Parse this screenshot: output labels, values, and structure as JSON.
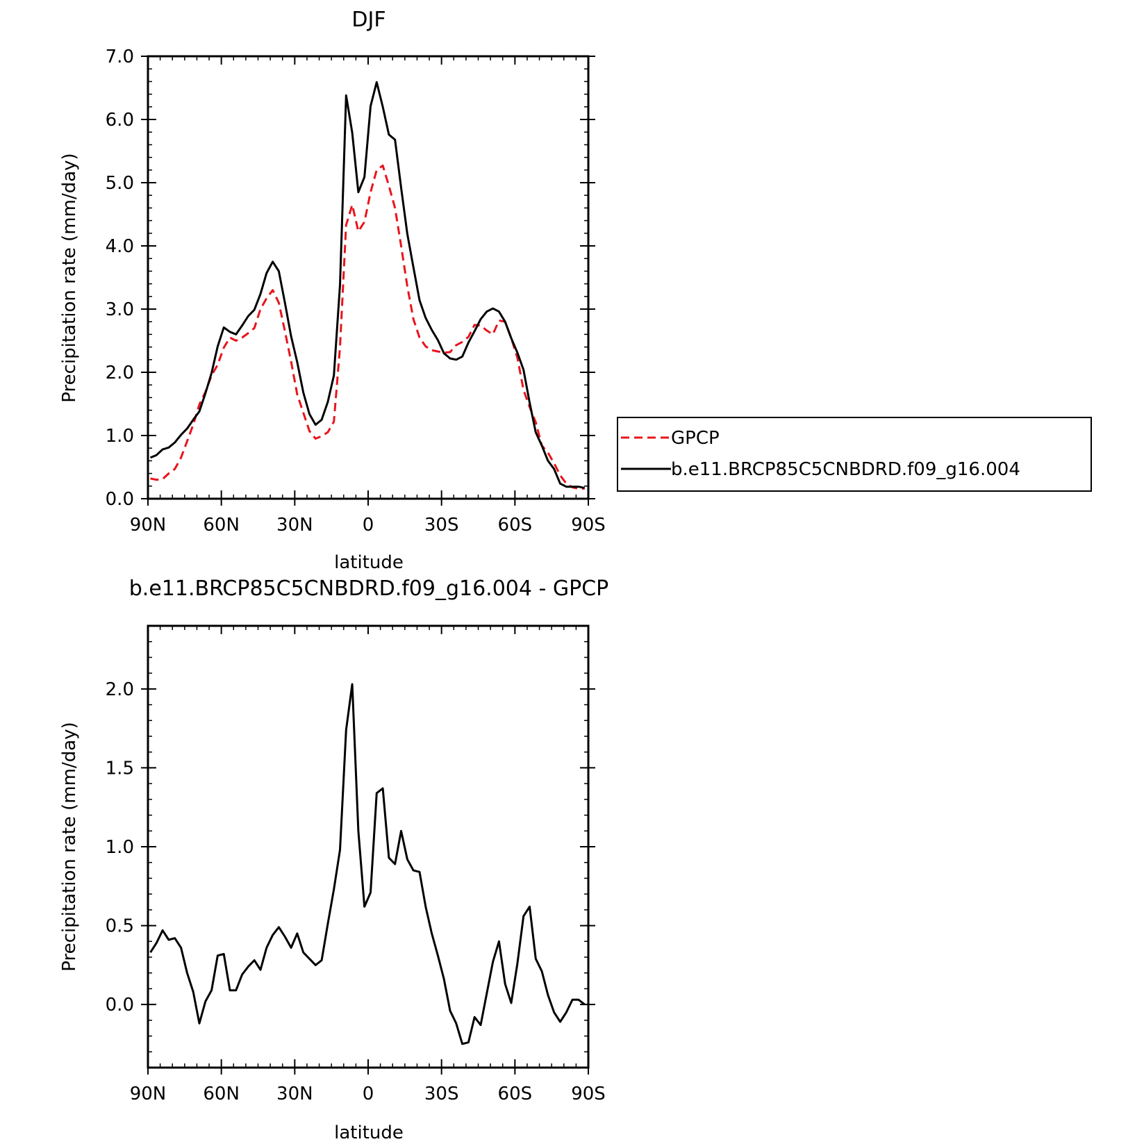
{
  "chart_data": [
    {
      "type": "line",
      "title": "DJF",
      "xlabel": "latitude",
      "ylabel": "Precipitation rate (mm/day)",
      "xlim": [
        90,
        -90
      ],
      "ylim": [
        0.0,
        7.0
      ],
      "xticks": [
        90,
        60,
        30,
        0,
        -30,
        -60,
        -90
      ],
      "xticklabels": [
        "90N",
        "60N",
        "30N",
        "0",
        "30S",
        "60S",
        "90S"
      ],
      "yticks": [
        0,
        1,
        2,
        3,
        4,
        5,
        6,
        7
      ],
      "yticklabels": [
        "0.0",
        "1.0",
        "2.0",
        "3.0",
        "4.0",
        "5.0",
        "6.0",
        "7.0"
      ],
      "legend": "right",
      "x": [
        89,
        86.5,
        84,
        81.5,
        79,
        76.5,
        74,
        71.5,
        69,
        66.5,
        64,
        61.5,
        59,
        56.5,
        54,
        51.5,
        49,
        46.5,
        44,
        41.5,
        39,
        36.5,
        34,
        31.5,
        29,
        26.5,
        24,
        21.5,
        19,
        16.5,
        14,
        11.5,
        9,
        6.5,
        4,
        1.5,
        -1,
        -3.5,
        -6,
        -8.5,
        -11,
        -13.5,
        -16,
        -18.5,
        -21,
        -23.5,
        -26,
        -28.5,
        -31,
        -33.5,
        -36,
        -38.5,
        -41,
        -43.5,
        -46,
        -48.5,
        -51,
        -53.5,
        -56,
        -58.5,
        -61,
        -63.5,
        -66,
        -68.5,
        -71,
        -73.5,
        -76,
        -78.5,
        -81,
        -83.5,
        -86,
        -88.5
      ],
      "series": [
        {
          "name": "GPCP",
          "color": "#e8141c",
          "dash": "dashed",
          "values": [
            0.32,
            0.3,
            0.31,
            0.4,
            0.47,
            0.65,
            0.91,
            1.17,
            1.49,
            1.69,
            1.95,
            2.12,
            2.39,
            2.55,
            2.5,
            2.55,
            2.62,
            2.7,
            3.0,
            3.17,
            3.3,
            3.1,
            2.65,
            2.17,
            1.65,
            1.36,
            1.07,
            0.95,
            0.99,
            1.05,
            1.22,
            2.4,
            4.33,
            4.65,
            4.23,
            4.38,
            4.85,
            5.2,
            5.27,
            4.95,
            4.6,
            4.0,
            3.36,
            2.84,
            2.55,
            2.41,
            2.35,
            2.33,
            2.31,
            2.32,
            2.43,
            2.48,
            2.56,
            2.75,
            2.74,
            2.66,
            2.6,
            2.82,
            2.8,
            2.54,
            2.23,
            1.72,
            1.45,
            1.21,
            0.84,
            0.73,
            0.56,
            0.37,
            0.24,
            0.18,
            0.16,
            0.16
          ]
        },
        {
          "name": "b.e11.BRCP85C5CNBDRD.f09_g16.004",
          "color": "#000000",
          "dash": "solid",
          "values": [
            0.65,
            0.69,
            0.78,
            0.81,
            0.89,
            1.01,
            1.11,
            1.25,
            1.38,
            1.67,
            1.99,
            2.41,
            2.71,
            2.64,
            2.6,
            2.74,
            2.89,
            2.99,
            3.24,
            3.57,
            3.75,
            3.6,
            3.1,
            2.57,
            2.16,
            1.68,
            1.34,
            1.17,
            1.25,
            1.53,
            1.95,
            3.38,
            6.38,
            5.79,
            4.85,
            5.09,
            6.21,
            6.59,
            6.2,
            5.76,
            5.68,
            4.92,
            4.19,
            3.66,
            3.14,
            2.86,
            2.67,
            2.51,
            2.3,
            2.22,
            2.2,
            2.25,
            2.47,
            2.65,
            2.84,
            2.96,
            3.01,
            2.96,
            2.8,
            2.54,
            2.31,
            2.04,
            1.52,
            1.05,
            0.84,
            0.6,
            0.47,
            0.24,
            0.19,
            0.19,
            0.19,
            0.17
          ]
        }
      ]
    },
    {
      "type": "line",
      "title": "b.e11.BRCP85C5CNBDRD.f09_g16.004 - GPCP",
      "xlabel": "latitude",
      "ylabel": "Precipitation rate (mm/day)",
      "xlim": [
        90,
        -90
      ],
      "ylim": [
        -0.4,
        2.4
      ],
      "xticks": [
        90,
        60,
        30,
        0,
        -30,
        -60,
        -90
      ],
      "xticklabels": [
        "90N",
        "60N",
        "30N",
        "0",
        "30S",
        "60S",
        "90S"
      ],
      "yticks": [
        0.0,
        0.5,
        1.0,
        1.5,
        2.0
      ],
      "yticklabels": [
        "0.0",
        "0.5",
        "1.0",
        "1.5",
        "2.0"
      ],
      "x": [
        89,
        86.5,
        84,
        81.5,
        79,
        76.5,
        74,
        71.5,
        69,
        66.5,
        64,
        61.5,
        59,
        56.5,
        54,
        51.5,
        49,
        46.5,
        44,
        41.5,
        39,
        36.5,
        34,
        31.5,
        29,
        26.5,
        24,
        21.5,
        19,
        16.5,
        14,
        11.5,
        9,
        6.5,
        4,
        1.5,
        -1,
        -3.5,
        -6,
        -8.5,
        -11,
        -13.5,
        -16,
        -18.5,
        -21,
        -23.5,
        -26,
        -28.5,
        -31,
        -33.5,
        -36,
        -38.5,
        -41,
        -43.5,
        -46,
        -48.5,
        -51,
        -53.5,
        -56,
        -58.5,
        -61,
        -63.5,
        -66,
        -68.5,
        -71,
        -73.5,
        -76,
        -78.5,
        -81,
        -83.5,
        -86,
        -88.5
      ],
      "series": [
        {
          "color": "#000000",
          "dash": "solid",
          "values": [
            0.33,
            0.39,
            0.47,
            0.41,
            0.42,
            0.36,
            0.2,
            0.08,
            -0.12,
            0.02,
            0.09,
            0.31,
            0.32,
            0.09,
            0.09,
            0.19,
            0.24,
            0.28,
            0.22,
            0.36,
            0.44,
            0.49,
            0.43,
            0.36,
            0.45,
            0.33,
            0.29,
            0.25,
            0.28,
            0.51,
            0.73,
            0.98,
            1.74,
            2.03,
            1.1,
            0.62,
            0.71,
            1.34,
            1.37,
            0.93,
            0.89,
            1.1,
            0.92,
            0.85,
            0.84,
            0.62,
            0.45,
            0.31,
            0.16,
            -0.04,
            -0.12,
            -0.25,
            -0.24,
            -0.08,
            -0.13,
            0.07,
            0.27,
            0.4,
            0.13,
            0.01,
            0.26,
            0.56,
            0.62,
            0.29,
            0.21,
            0.06,
            -0.05,
            -0.11,
            -0.05,
            0.03,
            0.03,
            0.0
          ]
        }
      ]
    }
  ]
}
